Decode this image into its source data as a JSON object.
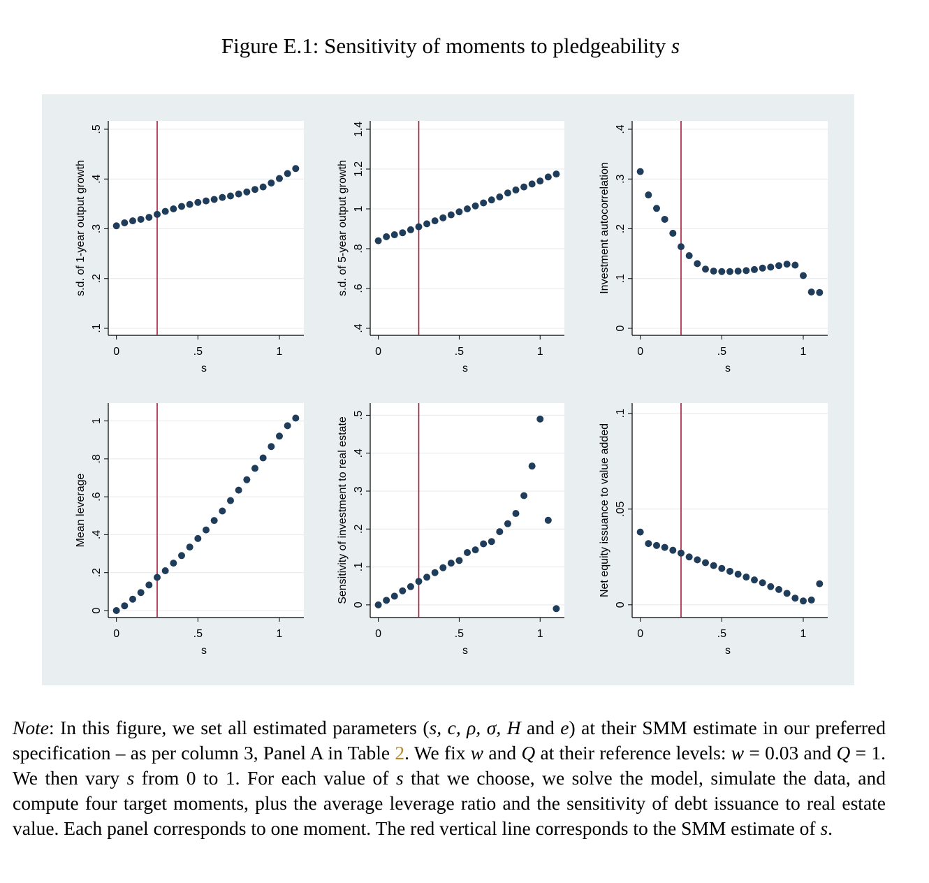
{
  "figure": {
    "title_prefix": "Figure E.1: Sensitivity of moments to pledgeability",
    "title_var": "s"
  },
  "colors": {
    "marker": "#1f3d5a",
    "refline": "#a31b3c",
    "panel_bg": "#e9eff1",
    "plot_bg": "#ffffff",
    "grid": "#e4e9ec",
    "ref_link": "#b5892f"
  },
  "chart_data": [
    {
      "type": "scatter",
      "xlabel": "s",
      "ylabel": "s.d. of 1-year output growth",
      "ylim": [
        0.1,
        0.5
      ],
      "yticks": [
        0.1,
        0.2,
        0.3,
        0.4,
        0.5
      ],
      "yticklabels": [
        ".1",
        ".2",
        ".3",
        ".4",
        ".5"
      ],
      "xlim": [
        -0.05,
        1.15
      ],
      "xticks": [
        0,
        0.5,
        1
      ],
      "xticklabels": [
        "0",
        ".5",
        "1"
      ],
      "vline": 0.25,
      "x": [
        0,
        0.05,
        0.1,
        0.15,
        0.2,
        0.25,
        0.3,
        0.35,
        0.4,
        0.45,
        0.5,
        0.55,
        0.6,
        0.65,
        0.7,
        0.75,
        0.8,
        0.85,
        0.9,
        0.95,
        1,
        1.05,
        1.1
      ],
      "y": [
        0.306,
        0.312,
        0.316,
        0.319,
        0.323,
        0.329,
        0.335,
        0.34,
        0.345,
        0.349,
        0.353,
        0.356,
        0.359,
        0.363,
        0.366,
        0.37,
        0.374,
        0.379,
        0.384,
        0.392,
        0.401,
        0.411,
        0.421
      ]
    },
    {
      "type": "scatter",
      "xlabel": "s",
      "ylabel": "s.d. of 5-year output growth",
      "ylim": [
        0.4,
        1.4
      ],
      "yticks": [
        0.4,
        0.6,
        0.8,
        1.0,
        1.2,
        1.4
      ],
      "yticklabels": [
        ".4",
        ".6",
        ".8",
        "1",
        "1.2",
        "1.4"
      ],
      "xlim": [
        -0.05,
        1.15
      ],
      "xticks": [
        0,
        0.5,
        1
      ],
      "xticklabels": [
        "0",
        ".5",
        "1"
      ],
      "vline": 0.25,
      "x": [
        0,
        0.05,
        0.1,
        0.15,
        0.2,
        0.25,
        0.3,
        0.35,
        0.4,
        0.45,
        0.5,
        0.55,
        0.6,
        0.65,
        0.7,
        0.75,
        0.8,
        0.85,
        0.9,
        0.95,
        1,
        1.05,
        1.1
      ],
      "y": [
        0.84,
        0.86,
        0.87,
        0.88,
        0.895,
        0.91,
        0.925,
        0.94,
        0.955,
        0.97,
        0.985,
        1.0,
        1.015,
        1.03,
        1.045,
        1.06,
        1.08,
        1.095,
        1.11,
        1.125,
        1.14,
        1.16,
        1.175
      ]
    },
    {
      "type": "scatter",
      "xlabel": "s",
      "ylabel": "Investment autocorrelation",
      "ylim": [
        0,
        0.4
      ],
      "yticks": [
        0,
        0.1,
        0.2,
        0.3,
        0.4
      ],
      "yticklabels": [
        "0",
        ".1",
        ".2",
        ".3",
        ".4"
      ],
      "xlim": [
        -0.05,
        1.15
      ],
      "xticks": [
        0,
        0.5,
        1
      ],
      "xticklabels": [
        "0",
        ".5",
        "1"
      ],
      "vline": 0.25,
      "x": [
        0,
        0.05,
        0.1,
        0.15,
        0.2,
        0.25,
        0.3,
        0.35,
        0.4,
        0.45,
        0.5,
        0.55,
        0.6,
        0.65,
        0.7,
        0.75,
        0.8,
        0.85,
        0.9,
        0.95,
        1,
        1.05,
        1.1
      ],
      "y": [
        0.315,
        0.268,
        0.241,
        0.219,
        0.191,
        0.164,
        0.146,
        0.13,
        0.119,
        0.115,
        0.114,
        0.114,
        0.115,
        0.116,
        0.118,
        0.121,
        0.123,
        0.126,
        0.129,
        0.127,
        0.106,
        0.073,
        0.072
      ]
    },
    {
      "type": "scatter",
      "xlabel": "s",
      "ylabel": "Mean leverage",
      "ylim": [
        0,
        1.05
      ],
      "yticks": [
        0,
        0.2,
        0.4,
        0.6,
        0.8,
        1.0
      ],
      "yticklabels": [
        "0",
        ".2",
        ".4",
        ".6",
        ".8",
        "1"
      ],
      "xlim": [
        -0.05,
        1.15
      ],
      "xticks": [
        0,
        0.5,
        1
      ],
      "xticklabels": [
        "0",
        ".5",
        "1"
      ],
      "vline": 0.25,
      "x": [
        0,
        0.05,
        0.1,
        0.15,
        0.2,
        0.25,
        0.3,
        0.35,
        0.4,
        0.45,
        0.5,
        0.55,
        0.6,
        0.65,
        0.7,
        0.75,
        0.8,
        0.85,
        0.9,
        0.95,
        1,
        1.05,
        1.1
      ],
      "y": [
        0.0,
        0.025,
        0.06,
        0.095,
        0.135,
        0.175,
        0.21,
        0.25,
        0.29,
        0.335,
        0.38,
        0.425,
        0.475,
        0.525,
        0.58,
        0.635,
        0.69,
        0.75,
        0.805,
        0.865,
        0.92,
        0.975,
        1.015
      ]
    },
    {
      "type": "scatter",
      "xlabel": "s",
      "ylabel": "Sensitivity of investment to real estate",
      "ylim": [
        -0.015,
        0.51
      ],
      "yticks": [
        0,
        0.1,
        0.2,
        0.3,
        0.4,
        0.5
      ],
      "yticklabels": [
        "0",
        ".1",
        ".2",
        ".3",
        ".4",
        ".5"
      ],
      "xlim": [
        -0.05,
        1.15
      ],
      "xticks": [
        0,
        0.5,
        1
      ],
      "xticklabels": [
        "0",
        ".5",
        "1"
      ],
      "vline": 0.25,
      "x": [
        0,
        0.05,
        0.1,
        0.15,
        0.2,
        0.25,
        0.3,
        0.35,
        0.4,
        0.45,
        0.5,
        0.55,
        0.6,
        0.65,
        0.7,
        0.75,
        0.8,
        0.85,
        0.9,
        0.95,
        1,
        1.05,
        1.1
      ],
      "y": [
        0.0,
        0.012,
        0.023,
        0.037,
        0.048,
        0.062,
        0.073,
        0.085,
        0.098,
        0.11,
        0.117,
        0.138,
        0.145,
        0.161,
        0.167,
        0.193,
        0.214,
        0.241,
        0.288,
        0.366,
        0.49,
        0.223,
        -0.01
      ]
    },
    {
      "type": "scatter",
      "xlabel": "s",
      "ylabel": "Net equity issuance to value added",
      "ylim": [
        -0.003,
        0.101
      ],
      "yticks": [
        0,
        0.05,
        0.1
      ],
      "yticklabels": [
        "0",
        ".05",
        ".1"
      ],
      "xlim": [
        -0.05,
        1.15
      ],
      "xticks": [
        0,
        0.5,
        1
      ],
      "xticklabels": [
        "0",
        ".5",
        "1"
      ],
      "vline": 0.25,
      "x": [
        0,
        0.05,
        0.1,
        0.15,
        0.2,
        0.25,
        0.3,
        0.35,
        0.4,
        0.45,
        0.5,
        0.55,
        0.6,
        0.65,
        0.7,
        0.75,
        0.8,
        0.85,
        0.9,
        0.95,
        1,
        1.05,
        1.1
      ],
      "y": [
        0.038,
        0.032,
        0.031,
        0.03,
        0.0285,
        0.027,
        0.025,
        0.0235,
        0.022,
        0.0205,
        0.019,
        0.0175,
        0.016,
        0.0145,
        0.013,
        0.0115,
        0.0095,
        0.008,
        0.006,
        0.0035,
        0.002,
        0.0025,
        0.011
      ]
    }
  ],
  "note": {
    "label": "Note",
    "s1": ": In this figure, we set all estimated parameters (",
    "params": "s, c, ρ, σ, H",
    "and": " and ",
    "e": "e",
    "s2": ") at their SMM estimate in our preferred specification – as per column 3, Panel A in Table ",
    "table_ref": "2",
    "s3": ". We fix ",
    "w": "w",
    "s4": " and ",
    "Q": "Q",
    "s5": " at their reference levels: ",
    "w_eq": "w",
    "w_val": " = 0.03",
    "and2": " and ",
    "Q_eq": "Q",
    "Q_val": " = 1",
    "s6": ". We then vary ",
    "s_a": "s",
    "s7": " from 0 to 1. For each value of ",
    "s_b": "s",
    "s8": " that we choose, we solve the model, simulate the data, and compute four target moments, plus the average leverage ratio and the sensitivity of debt issuance to real estate value. Each panel corresponds to one moment. The red vertical line corresponds to the SMM estimate of ",
    "s_c": "s",
    "s9": "."
  }
}
